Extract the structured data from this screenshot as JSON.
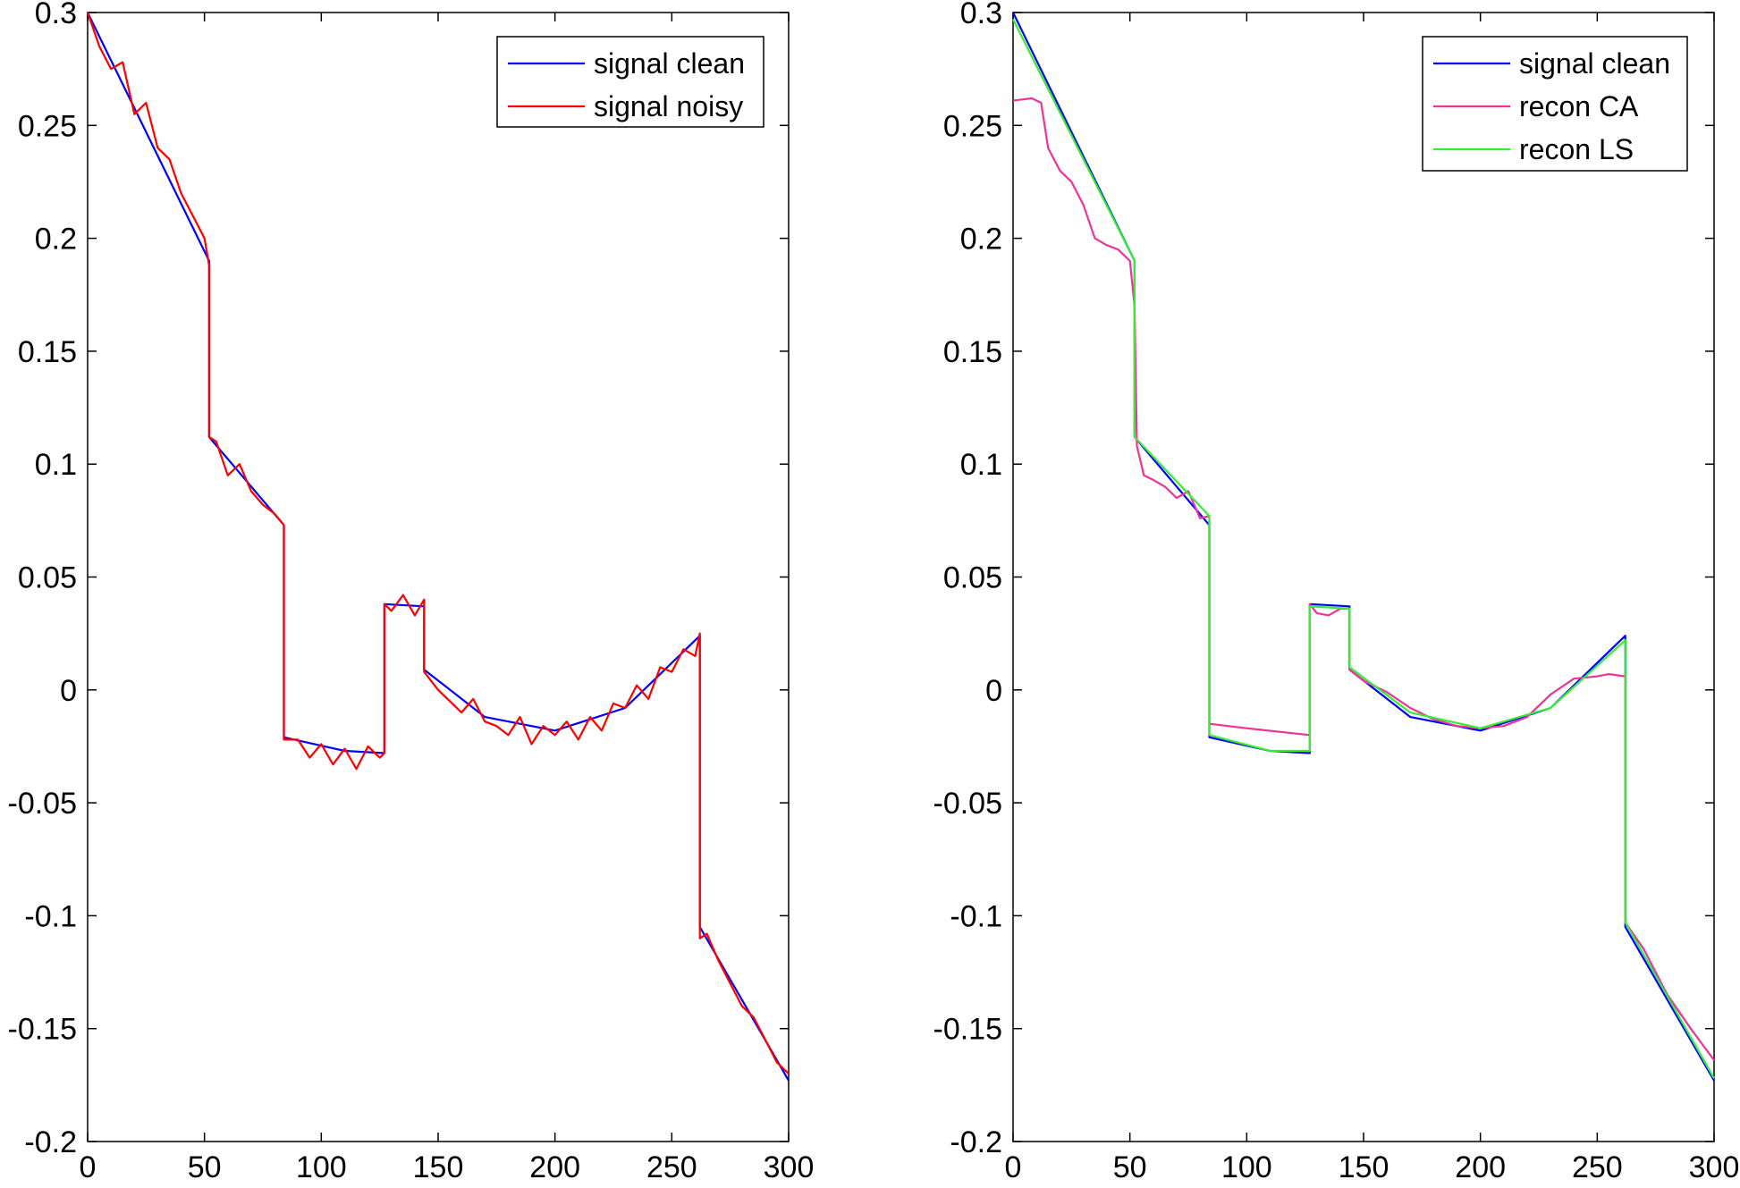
{
  "chart_data": [
    {
      "type": "line",
      "title": "",
      "xlabel": "",
      "ylabel": "",
      "xlim": [
        0,
        300
      ],
      "ylim": [
        -0.2,
        0.3
      ],
      "x_ticks": [
        0,
        50,
        100,
        150,
        200,
        250,
        300
      ],
      "x_tick_labels": [
        "0",
        "50",
        "100",
        "150",
        "200",
        "250",
        "300"
      ],
      "y_ticks": [
        -0.2,
        -0.15,
        -0.1,
        -0.05,
        0,
        0.05,
        0.1,
        0.15,
        0.2,
        0.25,
        0.3
      ],
      "y_tick_labels": [
        "-0.2",
        "-0.15",
        "-0.1",
        "-0.05",
        "0",
        "0.05",
        "0.1",
        "0.15",
        "0.2",
        "0.25",
        "0.3"
      ],
      "grid": false,
      "legend_position": "top-right",
      "series": [
        {
          "name": "signal clean",
          "color": "#0000ff",
          "x": [
            0,
            52,
            52,
            84,
            84,
            110,
            127,
            127,
            144,
            144,
            170,
            200,
            230,
            262,
            262,
            300
          ],
          "y": [
            0.3,
            0.19,
            0.112,
            0.073,
            -0.021,
            -0.027,
            -0.028,
            0.038,
            0.037,
            0.009,
            -0.012,
            -0.018,
            -0.008,
            0.024,
            -0.105,
            -0.173
          ]
        },
        {
          "name": "signal noisy",
          "color": "#ff0000",
          "x": [
            0,
            5,
            10,
            15,
            20,
            25,
            30,
            35,
            40,
            45,
            50,
            52,
            52,
            55,
            60,
            65,
            70,
            75,
            80,
            84,
            84,
            90,
            95,
            100,
            105,
            110,
            115,
            120,
            125,
            127,
            127,
            130,
            135,
            140,
            144,
            144,
            150,
            155,
            160,
            165,
            170,
            175,
            180,
            185,
            190,
            195,
            200,
            205,
            210,
            215,
            220,
            225,
            230,
            235,
            240,
            245,
            250,
            255,
            260,
            262,
            262,
            265,
            270,
            275,
            280,
            285,
            290,
            295,
            300
          ],
          "y": [
            0.3,
            0.285,
            0.275,
            0.278,
            0.255,
            0.26,
            0.24,
            0.235,
            0.22,
            0.21,
            0.2,
            0.188,
            0.112,
            0.11,
            0.095,
            0.1,
            0.088,
            0.082,
            0.078,
            0.073,
            -0.022,
            -0.022,
            -0.03,
            -0.024,
            -0.033,
            -0.026,
            -0.035,
            -0.025,
            -0.03,
            -0.028,
            0.038,
            0.035,
            0.042,
            0.033,
            0.04,
            0.008,
            0.0,
            -0.005,
            -0.01,
            -0.004,
            -0.014,
            -0.016,
            -0.02,
            -0.012,
            -0.024,
            -0.016,
            -0.02,
            -0.014,
            -0.022,
            -0.012,
            -0.018,
            -0.006,
            -0.008,
            0.002,
            -0.004,
            0.01,
            0.008,
            0.018,
            0.015,
            0.025,
            -0.11,
            -0.108,
            -0.12,
            -0.13,
            -0.14,
            -0.145,
            -0.155,
            -0.165,
            -0.17
          ]
        }
      ]
    },
    {
      "type": "line",
      "title": "",
      "xlabel": "",
      "ylabel": "",
      "xlim": [
        0,
        300
      ],
      "ylim": [
        -0.2,
        0.3
      ],
      "x_ticks": [
        0,
        50,
        100,
        150,
        200,
        250,
        300
      ],
      "x_tick_labels": [
        "0",
        "50",
        "100",
        "150",
        "200",
        "250",
        "300"
      ],
      "y_ticks": [
        -0.2,
        -0.15,
        -0.1,
        -0.05,
        0,
        0.05,
        0.1,
        0.15,
        0.2,
        0.25,
        0.3
      ],
      "y_tick_labels": [
        "-0.2",
        "-0.15",
        "-0.1",
        "-0.05",
        "0",
        "0.05",
        "0.1",
        "0.15",
        "0.2",
        "0.25",
        "0.3"
      ],
      "grid": false,
      "legend_position": "top-right",
      "series": [
        {
          "name": "signal clean",
          "color": "#0000ff",
          "x": [
            0,
            52,
            52,
            84,
            84,
            110,
            127,
            127,
            144,
            144,
            170,
            200,
            230,
            262,
            262,
            300
          ],
          "y": [
            0.3,
            0.19,
            0.112,
            0.073,
            -0.021,
            -0.027,
            -0.028,
            0.038,
            0.037,
            0.009,
            -0.012,
            -0.018,
            -0.008,
            0.024,
            -0.105,
            -0.173
          ]
        },
        {
          "name": "recon CA",
          "color": "#ee3399",
          "x": [
            0,
            8,
            12,
            15,
            20,
            25,
            30,
            35,
            40,
            45,
            50,
            52,
            53,
            56,
            60,
            65,
            70,
            75,
            80,
            84,
            84,
            100,
            127,
            127,
            130,
            135,
            140,
            144,
            144,
            150,
            160,
            170,
            180,
            190,
            200,
            210,
            220,
            230,
            240,
            250,
            255,
            262,
            262,
            270,
            280,
            290,
            300
          ],
          "y": [
            0.261,
            0.262,
            0.26,
            0.24,
            0.23,
            0.225,
            0.215,
            0.2,
            0.197,
            0.195,
            0.19,
            0.17,
            0.108,
            0.095,
            0.093,
            0.09,
            0.085,
            0.088,
            0.076,
            0.077,
            -0.015,
            -0.017,
            -0.02,
            0.038,
            0.034,
            0.033,
            0.036,
            0.036,
            0.009,
            0.004,
            -0.001,
            -0.008,
            -0.013,
            -0.016,
            -0.017,
            -0.016,
            -0.012,
            -0.002,
            0.005,
            0.006,
            0.007,
            0.006,
            -0.103,
            -0.115,
            -0.135,
            -0.15,
            -0.164
          ]
        },
        {
          "name": "recon LS",
          "color": "#33ee33",
          "x": [
            0,
            52,
            52,
            84,
            84,
            110,
            127,
            127,
            144,
            144,
            170,
            200,
            230,
            262,
            262,
            300
          ],
          "y": [
            0.297,
            0.19,
            0.112,
            0.077,
            -0.02,
            -0.027,
            -0.027,
            0.037,
            0.036,
            0.01,
            -0.01,
            -0.017,
            -0.008,
            0.022,
            -0.103,
            -0.172
          ]
        }
      ]
    }
  ]
}
